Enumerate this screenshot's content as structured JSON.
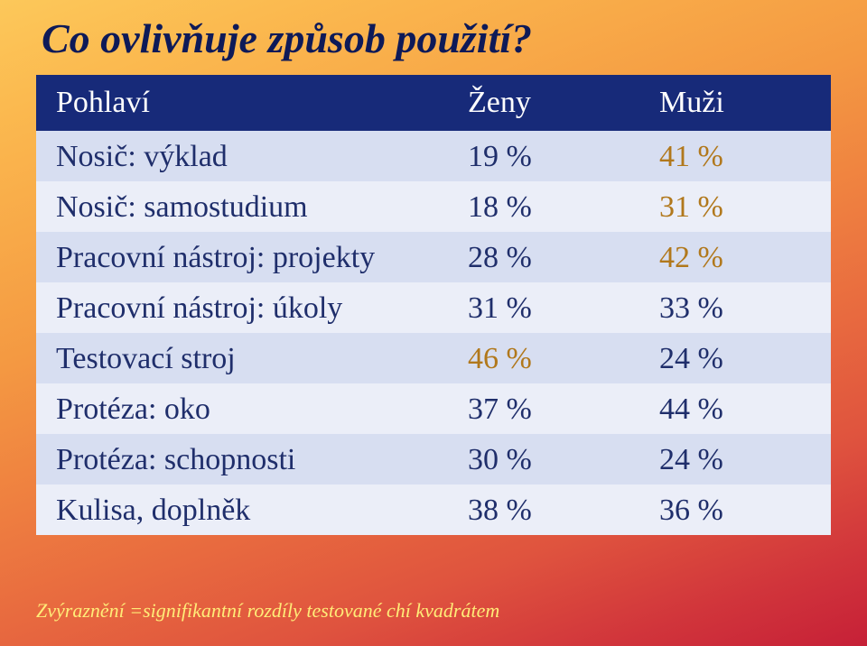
{
  "title": "Co ovlivňuje způsob použití?",
  "table": {
    "header": {
      "c0": "Pohlaví",
      "c1": "Ženy",
      "c2": "Muži"
    },
    "rows": [
      {
        "label": "Nosič: výklad",
        "women": "19 %",
        "men": "41 %",
        "hi_women": false,
        "hi_men": true
      },
      {
        "label": "Nosič: samostudium",
        "women": "18 %",
        "men": "31 %",
        "hi_women": false,
        "hi_men": true
      },
      {
        "label": "Pracovní nástroj: projekty",
        "women": "28 %",
        "men": "42 %",
        "hi_women": false,
        "hi_men": true
      },
      {
        "label": "Pracovní nástroj: úkoly",
        "women": "31 %",
        "men": "33 %",
        "hi_women": false,
        "hi_men": false
      },
      {
        "label": "Testovací stroj",
        "women": "46 %",
        "men": "24 %",
        "hi_women": true,
        "hi_men": false
      },
      {
        "label": "Protéza: oko",
        "women": "37 %",
        "men": "44 %",
        "hi_women": false,
        "hi_men": false
      },
      {
        "label": "Protéza: schopnosti",
        "women": "30 %",
        "men": "24 %",
        "hi_women": false,
        "hi_men": false
      },
      {
        "label": "Kulisa, doplněk",
        "women": "38 %",
        "men": "36 %",
        "hi_women": false,
        "hi_men": false
      }
    ]
  },
  "footnote": "Zvýraznění =signifikantní rozdíly testované chí kvadrátem",
  "colors": {
    "header_bg": "#172a79",
    "header_fg": "#ffffff",
    "row_odd": "#d7def1",
    "row_even": "#ebeef8",
    "text": "#1f2e6b",
    "highlight": "#b1781c",
    "footnote": "#ffec78"
  }
}
